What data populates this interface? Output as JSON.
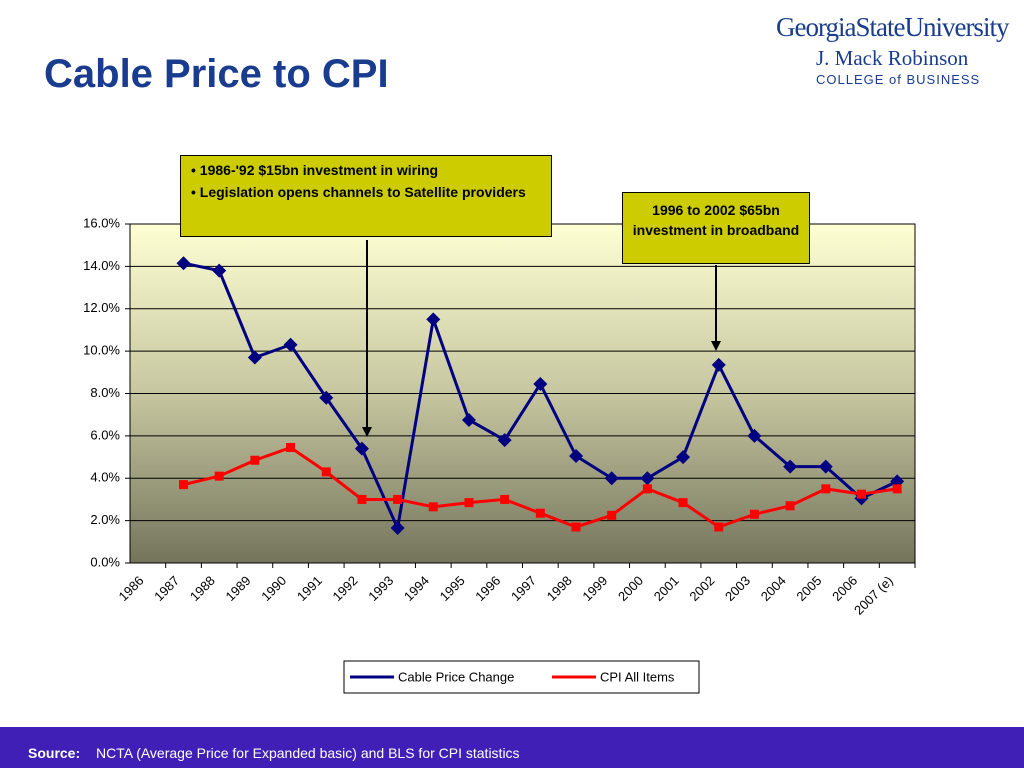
{
  "slide": {
    "logo": [
      "GeorgiaStateUniversity",
      "J. Mack Robinson",
      "COLLEGE of BUSINESS"
    ],
    "source_label": "Source:",
    "source_text": "NCTA (Average Price for Expanded basic) and BLS for CPI statistics"
  },
  "chart_data": {
    "type": "line",
    "title": "Cable Price to CPI",
    "categories": [
      "1986",
      "1987",
      "1988",
      "1989",
      "1990",
      "1991",
      "1992",
      "1993",
      "1994",
      "1995",
      "1996",
      "1997",
      "1998",
      "1999",
      "2000",
      "2001",
      "2002",
      "2003",
      "2004",
      "2005",
      "2006",
      "2007 (e)"
    ],
    "series": [
      {
        "name": "Cable Price Change",
        "color": "#000080",
        "marker": "diamond",
        "values": [
          null,
          14.15,
          13.8,
          9.7,
          10.3,
          7.8,
          5.4,
          1.65,
          11.5,
          6.75,
          5.8,
          8.45,
          5.05,
          4.0,
          4.0,
          5.0,
          9.35,
          6.0,
          4.55,
          4.55,
          3.05,
          3.85
        ]
      },
      {
        "name": "CPI All Items",
        "color": "#ff0000",
        "marker": "square",
        "values": [
          null,
          3.7,
          4.1,
          4.85,
          5.45,
          4.3,
          3.0,
          3.0,
          2.65,
          2.85,
          3.0,
          2.35,
          1.7,
          2.25,
          3.5,
          2.85,
          1.7,
          2.3,
          2.7,
          3.5,
          3.25,
          3.5
        ]
      }
    ],
    "ylim": [
      0,
      16
    ],
    "yticks": [
      {
        "value": 0,
        "label": "0.0%"
      },
      {
        "value": 2,
        "label": "2.0%"
      },
      {
        "value": 4,
        "label": "4.0%"
      },
      {
        "value": 6,
        "label": "6.0%"
      },
      {
        "value": 8,
        "label": "8.0%"
      },
      {
        "value": 10,
        "label": "10.0%"
      },
      {
        "value": 12,
        "label": "12.0%"
      },
      {
        "value": 14,
        "label": "14.0%"
      },
      {
        "value": 16,
        "label": "16.0%"
      }
    ],
    "grid": true,
    "legend": "bottom",
    "annotations": [
      {
        "bullets": [
          "1986-'92 $15bn investment in wiring",
          "Legislation opens channels to Satellite providers"
        ]
      },
      {
        "text": "1996 to 2002 $65bn investment in broadband"
      }
    ]
  }
}
